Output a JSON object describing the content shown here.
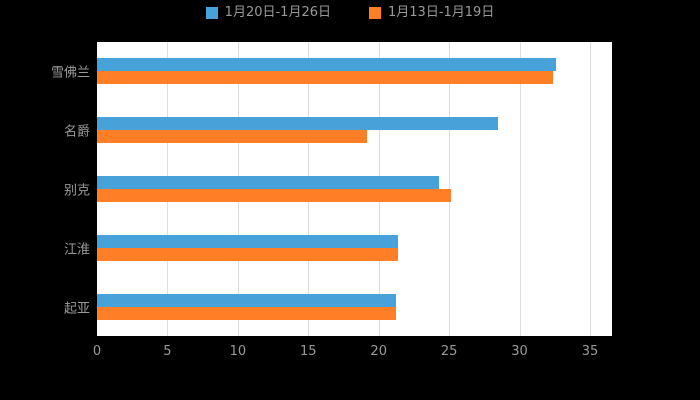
{
  "chart_data": {
    "type": "bar",
    "orientation": "horizontal",
    "title": "",
    "xlabel": "",
    "ylabel": "",
    "categories": [
      "雪佛兰",
      "名爵",
      "别克",
      "江淮",
      "起亚"
    ],
    "series": [
      {
        "name": "1月20日-1月26日",
        "color": "#47A2DA",
        "values": [
          32.6,
          28.5,
          24.3,
          21.4,
          21.2
        ]
      },
      {
        "name": "1月13日-1月19日",
        "color": "#FF7E26",
        "values": [
          32.4,
          19.2,
          25.1,
          21.4,
          21.2
        ]
      }
    ],
    "x_ticks": [
      "0",
      "5",
      "10",
      "15",
      "20",
      "25",
      "30",
      "35"
    ],
    "xlim": [
      0,
      35
    ],
    "grid": true,
    "legend_position": "top",
    "colors": {
      "page_background": "#000000",
      "plot_background": "#FFFFFF",
      "gridline": "#DDDDDD",
      "axis_text": "#999999",
      "legend_text": "#999999"
    }
  }
}
